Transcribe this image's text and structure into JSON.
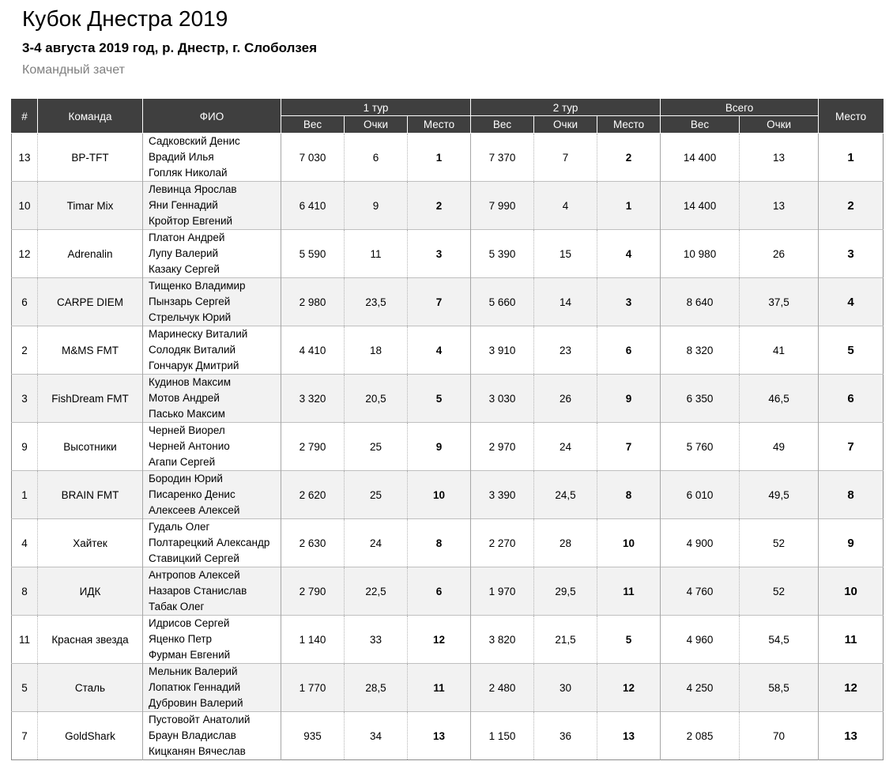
{
  "page": {
    "title": "Кубок Днестра 2019",
    "subtitle": "3-4 августа 2019 год, р. Днестр, г. Слоболзея",
    "section": "Командный зачет"
  },
  "colors": {
    "header_bg": "#3f3f3f",
    "header_text": "#ffffff",
    "alt_row_bg": "#f2f2f2",
    "grid_line": "#bfbfbf",
    "section_text": "#7f7f7f"
  },
  "table": {
    "headers": {
      "num": "#",
      "team": "Команда",
      "fio": "ФИО",
      "round1": "1 тур",
      "round2": "2 тур",
      "total": "Всего",
      "weight": "Вес",
      "points": "Очки",
      "place": "Место",
      "final_place": "Место"
    },
    "rows": [
      {
        "num": "13",
        "team": "BP-TFT",
        "members": [
          "Садковский Денис",
          "Врадий Илья",
          "Гопляк Николай"
        ],
        "r1": {
          "weight": "7 030",
          "points": "6",
          "place": "1"
        },
        "r2": {
          "weight": "7 370",
          "points": "7",
          "place": "2"
        },
        "total": {
          "weight": "14 400",
          "points": "13"
        },
        "final_place": "1"
      },
      {
        "num": "10",
        "team": "Timar Mix",
        "members": [
          "Левинца Ярослав",
          "Яни Геннадий",
          "Кройтор Евгений"
        ],
        "r1": {
          "weight": "6 410",
          "points": "9",
          "place": "2"
        },
        "r2": {
          "weight": "7 990",
          "points": "4",
          "place": "1"
        },
        "total": {
          "weight": "14 400",
          "points": "13"
        },
        "final_place": "2"
      },
      {
        "num": "12",
        "team": "Adrenalin",
        "members": [
          "Платон Андрей",
          "Лупу Валерий",
          "Казаку Сергей"
        ],
        "r1": {
          "weight": "5 590",
          "points": "11",
          "place": "3"
        },
        "r2": {
          "weight": "5 390",
          "points": "15",
          "place": "4"
        },
        "total": {
          "weight": "10 980",
          "points": "26"
        },
        "final_place": "3"
      },
      {
        "num": "6",
        "team": "CARPE DIEM",
        "members": [
          "Тищенко Владимир",
          "Пынзарь Сергей",
          "Стрельчук Юрий"
        ],
        "r1": {
          "weight": "2 980",
          "points": "23,5",
          "place": "7"
        },
        "r2": {
          "weight": "5 660",
          "points": "14",
          "place": "3"
        },
        "total": {
          "weight": "8 640",
          "points": "37,5"
        },
        "final_place": "4"
      },
      {
        "num": "2",
        "team": "M&MS FMT",
        "members": [
          "Маринеску Виталий",
          "Солодяк Виталий",
          "Гончарук Дмитрий"
        ],
        "r1": {
          "weight": "4 410",
          "points": "18",
          "place": "4"
        },
        "r2": {
          "weight": "3 910",
          "points": "23",
          "place": "6"
        },
        "total": {
          "weight": "8 320",
          "points": "41"
        },
        "final_place": "5"
      },
      {
        "num": "3",
        "team": "FishDream FMT",
        "members": [
          "Кудинов Максим",
          "Мотов Андрей",
          "Пасько Максим"
        ],
        "r1": {
          "weight": "3 320",
          "points": "20,5",
          "place": "5"
        },
        "r2": {
          "weight": "3 030",
          "points": "26",
          "place": "9"
        },
        "total": {
          "weight": "6 350",
          "points": "46,5"
        },
        "final_place": "6"
      },
      {
        "num": "9",
        "team": "Высотники",
        "members": [
          "Черней Виорел",
          "Черней Антонио",
          "Агапи Сергей"
        ],
        "r1": {
          "weight": "2 790",
          "points": "25",
          "place": "9"
        },
        "r2": {
          "weight": "2 970",
          "points": "24",
          "place": "7"
        },
        "total": {
          "weight": "5 760",
          "points": "49"
        },
        "final_place": "7"
      },
      {
        "num": "1",
        "team": "BRAIN FMT",
        "members": [
          "Бородин Юрий",
          "Писаренко Денис",
          "Алексеев Алексей"
        ],
        "r1": {
          "weight": "2 620",
          "points": "25",
          "place": "10"
        },
        "r2": {
          "weight": "3 390",
          "points": "24,5",
          "place": "8"
        },
        "total": {
          "weight": "6 010",
          "points": "49,5"
        },
        "final_place": "8"
      },
      {
        "num": "4",
        "team": "Хайтек",
        "members": [
          "Гудаль Олег",
          "Полтарецкий Александр",
          "Ставицкий Сергей"
        ],
        "r1": {
          "weight": "2 630",
          "points": "24",
          "place": "8"
        },
        "r2": {
          "weight": "2 270",
          "points": "28",
          "place": "10"
        },
        "total": {
          "weight": "4 900",
          "points": "52"
        },
        "final_place": "9"
      },
      {
        "num": "8",
        "team": "ИДК",
        "members": [
          "Антропов Алексей",
          "Назаров Станислав",
          "Табак Олег"
        ],
        "r1": {
          "weight": "2 790",
          "points": "22,5",
          "place": "6"
        },
        "r2": {
          "weight": "1 970",
          "points": "29,5",
          "place": "11"
        },
        "total": {
          "weight": "4 760",
          "points": "52"
        },
        "final_place": "10"
      },
      {
        "num": "11",
        "team": "Красная звезда",
        "members": [
          "Идрисов Сергей",
          "Яценко Петр",
          "Фурман Евгений"
        ],
        "r1": {
          "weight": "1 140",
          "points": "33",
          "place": "12"
        },
        "r2": {
          "weight": "3 820",
          "points": "21,5",
          "place": "5"
        },
        "total": {
          "weight": "4 960",
          "points": "54,5"
        },
        "final_place": "11"
      },
      {
        "num": "5",
        "team": "Сталь",
        "members": [
          "Мельник Валерий",
          "Лопатюк Геннадий",
          "Дубровин Валерий"
        ],
        "r1": {
          "weight": "1 770",
          "points": "28,5",
          "place": "11"
        },
        "r2": {
          "weight": "2 480",
          "points": "30",
          "place": "12"
        },
        "total": {
          "weight": "4 250",
          "points": "58,5"
        },
        "final_place": "12"
      },
      {
        "num": "7",
        "team": "GoldShark",
        "members": [
          "Пустовойт Анатолий",
          "Браун Владислав",
          "Кицканян Вячеслав"
        ],
        "r1": {
          "weight": "935",
          "points": "34",
          "place": "13"
        },
        "r2": {
          "weight": "1 150",
          "points": "36",
          "place": "13"
        },
        "total": {
          "weight": "2 085",
          "points": "70"
        },
        "final_place": "13"
      }
    ]
  }
}
